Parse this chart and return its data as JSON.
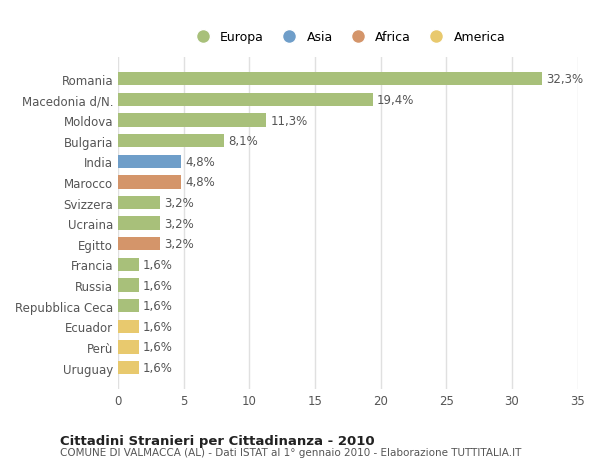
{
  "categories": [
    "Romania",
    "Macedonia d/N.",
    "Moldova",
    "Bulgaria",
    "India",
    "Marocco",
    "Svizzera",
    "Ucraina",
    "Egitto",
    "Francia",
    "Russia",
    "Repubblica Ceca",
    "Ecuador",
    "Perù",
    "Uruguay"
  ],
  "values": [
    32.3,
    19.4,
    11.3,
    8.1,
    4.8,
    4.8,
    3.2,
    3.2,
    3.2,
    1.6,
    1.6,
    1.6,
    1.6,
    1.6,
    1.6
  ],
  "labels": [
    "32,3%",
    "19,4%",
    "11,3%",
    "8,1%",
    "4,8%",
    "4,8%",
    "3,2%",
    "3,2%",
    "3,2%",
    "1,6%",
    "1,6%",
    "1,6%",
    "1,6%",
    "1,6%",
    "1,6%"
  ],
  "continents": [
    "Europa",
    "Europa",
    "Europa",
    "Europa",
    "Asia",
    "Africa",
    "Europa",
    "Europa",
    "Africa",
    "Europa",
    "Europa",
    "Europa",
    "America",
    "America",
    "America"
  ],
  "colors": {
    "Europa": "#a8c07a",
    "Asia": "#6f9ec9",
    "Africa": "#d4956a",
    "America": "#e8c96e"
  },
  "legend_order": [
    "Europa",
    "Asia",
    "Africa",
    "America"
  ],
  "title": "Cittadini Stranieri per Cittadinanza - 2010",
  "subtitle": "COMUNE DI VALMACCA (AL) - Dati ISTAT al 1° gennaio 2010 - Elaborazione TUTTITALIA.IT",
  "xlim": [
    0,
    35
  ],
  "xticks": [
    0,
    5,
    10,
    15,
    20,
    25,
    30,
    35
  ],
  "bg_color": "#ffffff",
  "grid_color": "#e0e0e0",
  "bar_height": 0.65,
  "label_fontsize": 8.5,
  "tick_fontsize": 8.5
}
